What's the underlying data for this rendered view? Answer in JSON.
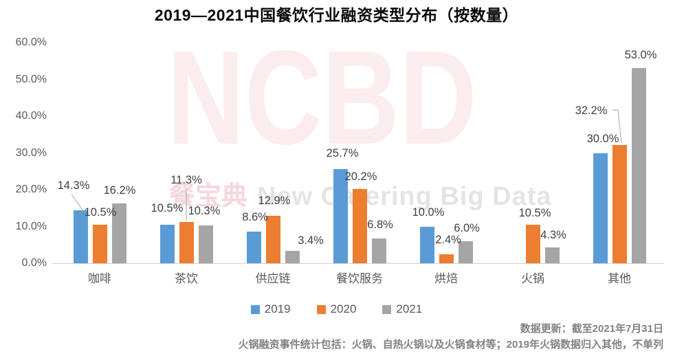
{
  "title": "2019—2021中国餐饮行业融资类型分布（按数量）",
  "watermark": {
    "big": "NCBD",
    "cn": "餐宝典",
    "en": "New Catering Big Data"
  },
  "footer": {
    "line1": "数据更新：截至2021年7月31日",
    "line2": "火锅融资事件统计包括：火锅、自热火锅以及火锅食材等；2019年火锅数据归入其他，不单列"
  },
  "chart_data": {
    "type": "bar",
    "title": "2019—2021中国餐饮行业融资类型分布（按数量）",
    "categories": [
      "咖啡",
      "茶饮",
      "供应链",
      "餐饮服务",
      "烘焙",
      "火锅",
      "其他"
    ],
    "series": [
      {
        "name": "2019",
        "color": "#5B9BD5",
        "values": [
          14.3,
          10.5,
          8.6,
          25.7,
          10.0,
          null,
          30.0
        ]
      },
      {
        "name": "2020",
        "color": "#ED7D31",
        "values": [
          10.5,
          11.3,
          12.9,
          20.2,
          2.4,
          10.5,
          32.2
        ]
      },
      {
        "name": "2021",
        "color": "#A5A5A5",
        "values": [
          16.2,
          10.3,
          3.4,
          6.8,
          6.0,
          4.3,
          53.0
        ]
      }
    ],
    "xlabel": "",
    "ylabel": "",
    "ylim": [
      0,
      60
    ],
    "ytick_step": 10,
    "ytick_format": "0.0%",
    "data_label_format": "0.0%",
    "grid": false,
    "legend_position": "bottom",
    "plot_background": "#ffffff"
  }
}
